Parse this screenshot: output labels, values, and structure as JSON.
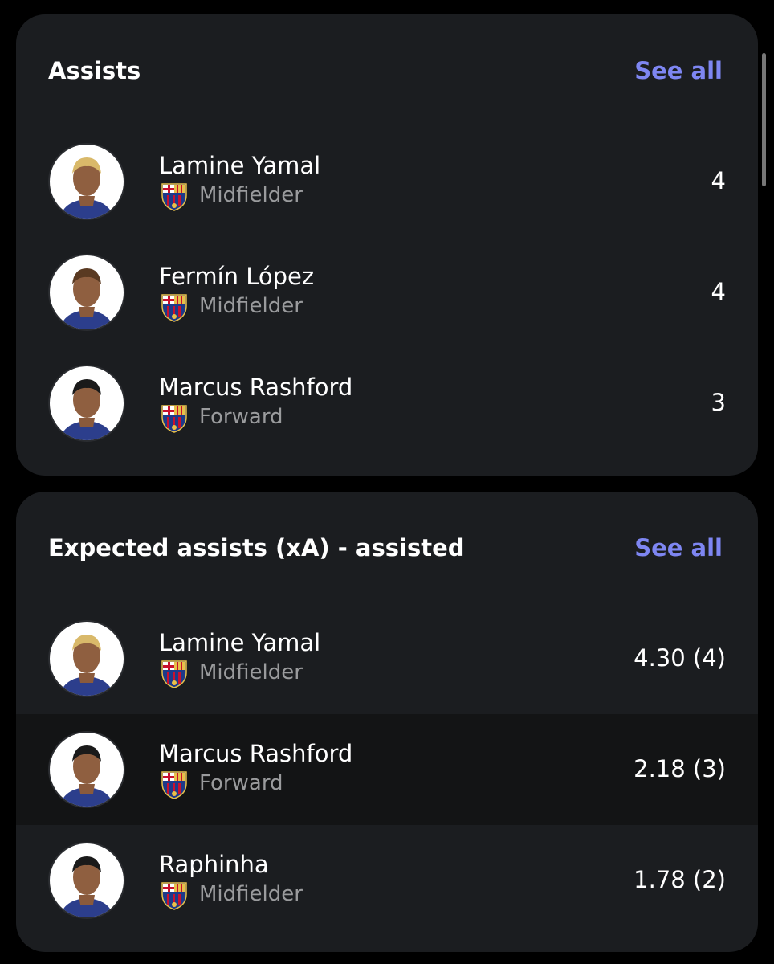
{
  "sections": [
    {
      "title": "Assists",
      "see_all": "See all",
      "players": [
        {
          "name": "Lamine Yamal",
          "position": "Midfielder",
          "value": "4"
        },
        {
          "name": "Fermín López",
          "position": "Midfielder",
          "value": "4"
        },
        {
          "name": "Marcus Rashford",
          "position": "Forward",
          "value": "3"
        }
      ]
    },
    {
      "title": "Expected assists (xA) - assisted",
      "see_all": "See all",
      "players": [
        {
          "name": "Lamine Yamal",
          "position": "Midfielder",
          "value": "4.30 (4)"
        },
        {
          "name": "Marcus Rashford",
          "position": "Forward",
          "value": "2.18 (3)"
        },
        {
          "name": "Raphinha",
          "position": "Midfielder",
          "value": "1.78 (2)"
        }
      ]
    }
  ]
}
